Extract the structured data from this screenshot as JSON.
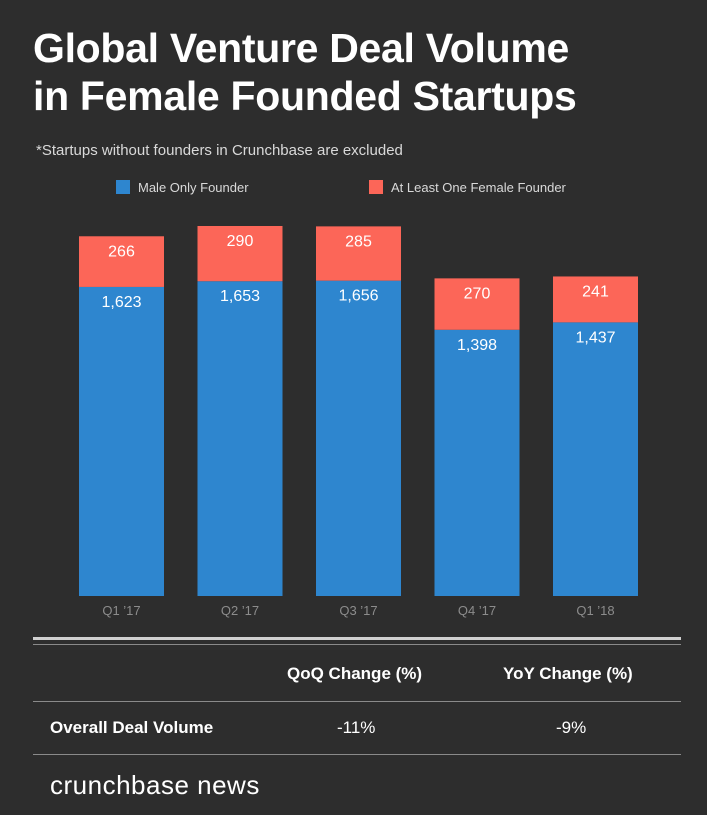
{
  "title_line1": "Global Venture Deal Volume",
  "title_line2": "in Female Founded Startups",
  "subtitle": "*Startups without founders in Crunchbase are excluded",
  "chart_data": {
    "type": "bar",
    "stacked": true,
    "categories": [
      "Q1 ’17",
      "Q2 ’17",
      "Q3 ’17",
      "Q4 ’17",
      "Q1 ’18"
    ],
    "series": [
      {
        "name": "Male Only Founder",
        "color": "#2e86cf",
        "values": [
          1623,
          1653,
          1656,
          1398,
          1437
        ],
        "labels": [
          "1,623",
          "1,653",
          "1,656",
          "1,398",
          "1,437"
        ]
      },
      {
        "name": "At Least One Female Founder",
        "color": "#fc6658",
        "values": [
          266,
          290,
          285,
          270,
          241
        ],
        "labels": [
          "266",
          "290",
          "285",
          "270",
          "241"
        ]
      }
    ],
    "ylim": [
      0,
      1943
    ],
    "legend": "top-center",
    "grid": false
  },
  "table": {
    "headers": [
      "QoQ Change (%)",
      "YoY Change (%)"
    ],
    "row_label": "Overall Deal Volume",
    "values": [
      "-11%",
      "-9%"
    ]
  },
  "brand": "crunchbase news"
}
